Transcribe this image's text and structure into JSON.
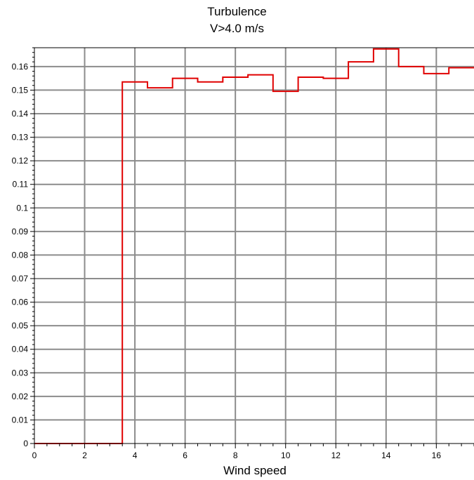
{
  "chart_data": {
    "type": "line",
    "step": true,
    "title": "Turbulence",
    "subtitle": "V>4.0 m/s",
    "xlabel": "Wind speed",
    "ylabel": "",
    "xlim": [
      0,
      17.5
    ],
    "ylim": [
      0,
      0.168
    ],
    "xticks": [
      0,
      2,
      4,
      6,
      8,
      10,
      12,
      14,
      16
    ],
    "xtick_labels": [
      "0",
      "2",
      "4",
      "6",
      "8",
      "10",
      "12",
      "14",
      "16"
    ],
    "yticks": [
      0,
      0.01,
      0.02,
      0.03,
      0.04,
      0.05,
      0.06,
      0.07,
      0.08,
      0.09,
      0.1,
      0.11,
      0.12,
      0.13,
      0.14,
      0.15,
      0.16
    ],
    "ytick_labels": [
      "0",
      "0.01",
      "0.02",
      "0.03",
      "0.04",
      "0.05",
      "0.06",
      "0.07",
      "0.08",
      "0.09",
      "0.1",
      "0.11",
      "0.12",
      "0.13",
      "0.14",
      "0.15",
      "0.16"
    ],
    "grid": true,
    "color": "#e00000",
    "series": [
      {
        "bin_edges": [
          0,
          3.5,
          4.5,
          5.5,
          6.5,
          7.5,
          8.5,
          9.5,
          10.5,
          11.5,
          12.5,
          13.5,
          14.5,
          15.5,
          16.5,
          17.5
        ],
        "values": [
          0,
          0.1535,
          0.151,
          0.155,
          0.1535,
          0.1555,
          0.1565,
          0.1495,
          0.1555,
          0.155,
          0.162,
          0.1675,
          0.16,
          0.157,
          0.1595
        ]
      }
    ]
  }
}
